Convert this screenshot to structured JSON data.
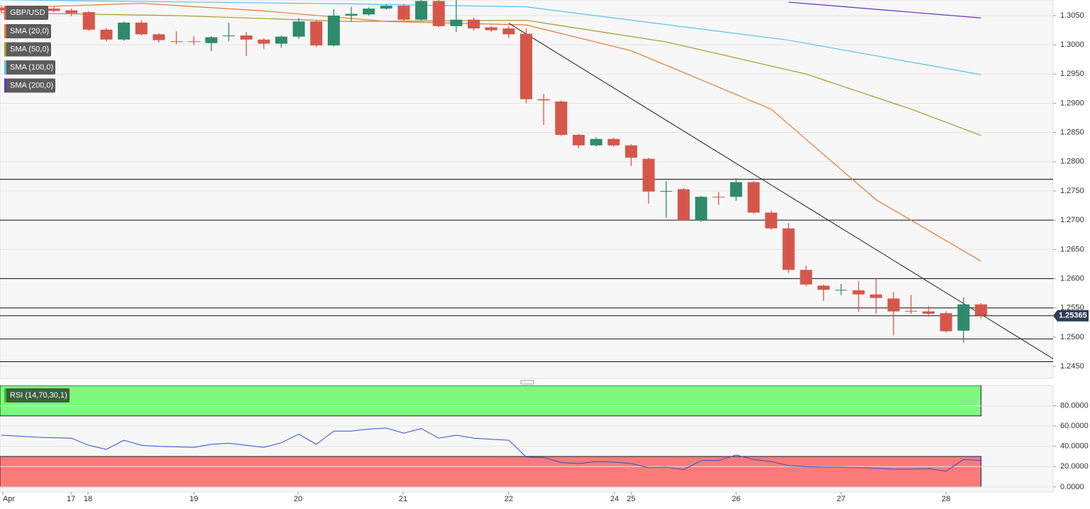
{
  "chart_data": [
    {
      "type": "candlestick",
      "title": "GBP/USD",
      "xlim": [
        -0.081,
        60.12
      ],
      "ylim": [
        1.24294,
        1.30767
      ],
      "yticks": [
        {
          "value": 1.245,
          "label": "1.2450"
        },
        {
          "value": 1.25,
          "label": "1.2500"
        },
        {
          "value": 1.255,
          "label": "1.2550"
        },
        {
          "value": 1.26,
          "label": "1.2600"
        },
        {
          "value": 1.265,
          "label": "1.2650"
        },
        {
          "value": 1.27,
          "label": "1.2700"
        },
        {
          "value": 1.275,
          "label": "1.2750"
        },
        {
          "value": 1.28,
          "label": "1.2800"
        },
        {
          "value": 1.285,
          "label": "1.2850"
        },
        {
          "value": 1.29,
          "label": "1.2900"
        },
        {
          "value": 1.295,
          "label": "1.2950"
        },
        {
          "value": 1.3,
          "label": "1.3000"
        },
        {
          "value": 1.305,
          "label": "1.3050"
        }
      ],
      "grid": true,
      "up_color": "#2f8a6c",
      "down_color": "#d6574a",
      "open": [
        1.3063,
        1.3061,
        1.3058,
        1.3062,
        1.3059,
        1.3056,
        1.3026,
        1.3009,
        1.3038,
        1.3018,
        1.3006,
        1.3006,
        1.3003,
        1.3015,
        1.3016,
        1.3009,
        1.3002,
        1.3014,
        1.304,
        1.2999,
        1.305,
        1.3052,
        1.3062,
        1.3067,
        1.3043,
        1.3075,
        1.3032,
        1.3043,
        1.303,
        1.3028,
        1.3019,
        1.2907,
        1.2903,
        1.2846,
        1.2828,
        1.2839,
        1.2828,
        1.2805,
        1.2749,
        1.2753,
        1.27,
        1.274,
        1.274,
        1.2765,
        1.2713,
        1.2686,
        1.2615,
        1.2588,
        1.258,
        1.258,
        1.2573,
        1.2566,
        1.2545,
        1.2544,
        1.2541,
        1.2511,
        1.2556
      ],
      "high": [
        1.3068,
        1.3065,
        1.3062,
        1.3065,
        1.3062,
        1.3058,
        1.3029,
        1.304,
        1.3042,
        1.302,
        1.3023,
        1.3015,
        1.3015,
        1.3038,
        1.3022,
        1.3011,
        1.3016,
        1.3046,
        1.3042,
        1.3061,
        1.3065,
        1.3064,
        1.3069,
        1.307,
        1.308,
        1.3078,
        1.3077,
        1.3046,
        1.3032,
        1.3032,
        1.3028,
        1.2916,
        1.2905,
        1.2848,
        1.2842,
        1.2841,
        1.283,
        1.2807,
        1.2767,
        1.2755,
        1.2742,
        1.2748,
        1.2772,
        1.2767,
        1.2716,
        1.2695,
        1.2622,
        1.259,
        1.2591,
        1.2596,
        1.26,
        1.2577,
        1.2572,
        1.2553,
        1.2544,
        1.2568,
        1.2558
      ],
      "low": [
        1.3055,
        1.3055,
        1.3056,
        1.3056,
        1.3049,
        1.3024,
        1.3006,
        1.3007,
        1.3016,
        1.3004,
        1.3001,
        1.3,
        1.2989,
        1.3006,
        1.2981,
        1.2993,
        1.2995,
        1.301,
        1.2996,
        1.2997,
        1.304,
        1.305,
        1.306,
        1.3041,
        1.3041,
        1.303,
        1.3022,
        1.3024,
        1.3022,
        1.3012,
        1.29,
        1.2863,
        1.2844,
        1.2823,
        1.2826,
        1.2826,
        1.2793,
        1.2728,
        1.2704,
        1.27,
        1.2697,
        1.2726,
        1.2733,
        1.2711,
        1.2684,
        1.261,
        1.2587,
        1.2562,
        1.2572,
        1.2543,
        1.254,
        1.2503,
        1.254,
        1.2535,
        1.2508,
        1.2491,
        1.2532
      ],
      "close": [
        1.3059,
        1.3058,
        1.306,
        1.3058,
        1.3054,
        1.3026,
        1.3009,
        1.3038,
        1.3018,
        1.3008,
        1.3005,
        1.3005,
        1.3013,
        1.3016,
        1.3009,
        1.3002,
        1.3014,
        1.304,
        1.2999,
        1.305,
        1.3053,
        1.3062,
        1.3067,
        1.3043,
        1.3075,
        1.3032,
        1.3043,
        1.3028,
        1.3025,
        1.3018,
        1.2907,
        1.2905,
        1.2846,
        1.2828,
        1.2839,
        1.2828,
        1.2807,
        1.2749,
        1.275,
        1.27,
        1.274,
        1.2739,
        1.2765,
        1.2713,
        1.2686,
        1.2615,
        1.259,
        1.2581,
        1.2581,
        1.2573,
        1.2567,
        1.2544,
        1.2544,
        1.254,
        1.251,
        1.2556,
        1.2537
      ],
      "series": [
        {
          "name": "SMA (20,0)",
          "color": "#e8782f",
          "x": [
            0,
            8,
            15,
            22,
            30,
            36,
            38,
            44,
            50,
            56
          ],
          "values": [
            1.3063,
            1.3071,
            1.3058,
            1.304,
            1.3034,
            1.299,
            1.2965,
            1.289,
            1.2735,
            1.263
          ]
        },
        {
          "name": "SMA (50,0)",
          "color": "#a89a2a",
          "x": [
            0,
            10,
            20,
            30,
            38,
            46,
            52,
            56
          ],
          "values": [
            1.3055,
            1.305,
            1.304,
            1.3042,
            1.3005,
            1.295,
            1.289,
            1.2845
          ]
        },
        {
          "name": "SMA (100,0)",
          "color": "#5bc0eb",
          "x": [
            0,
            20,
            30,
            45,
            56
          ],
          "values": [
            1.3077,
            1.307,
            1.3065,
            1.3008,
            1.2949
          ]
        },
        {
          "name": "SMA (200,0)",
          "color": "#6a2fc4",
          "x": [
            45,
            56
          ],
          "values": [
            1.3073,
            1.3046
          ]
        }
      ],
      "hlines": [
        1.277,
        1.27,
        1.26,
        1.255,
        1.25365,
        1.2497,
        1.2458
      ],
      "trendline": {
        "x": [
          29,
          60.12
        ],
        "values": [
          1.3037,
          1.2463
        ]
      },
      "last_price": {
        "value": 1.25365,
        "label": "1.25365"
      }
    },
    {
      "type": "line",
      "title": "RSI (14,70,30,1)",
      "color": "#2c4fe0",
      "xlim": [
        -0.081,
        60.12
      ],
      "ylim": [
        -5,
        100
      ],
      "yticks": [
        {
          "value": 0,
          "label": "0.0000"
        },
        {
          "value": 20,
          "label": "20.0000"
        },
        {
          "value": 40,
          "label": "40.0000"
        },
        {
          "value": 60,
          "label": "60.0000"
        },
        {
          "value": 80,
          "label": "80.0000"
        }
      ],
      "xticks": [
        {
          "value": 0.08,
          "label": "Apr"
        },
        {
          "value": 3.98,
          "label": "17"
        },
        {
          "value": 4.95,
          "label": "18"
        },
        {
          "value": 11,
          "label": "19"
        },
        {
          "value": 16.96,
          "label": "20"
        },
        {
          "value": 22.96,
          "label": "21"
        },
        {
          "value": 29,
          "label": "22"
        },
        {
          "value": 35.05,
          "label": "24"
        },
        {
          "value": 36,
          "label": "25"
        },
        {
          "value": 42,
          "label": "26"
        },
        {
          "value": 48,
          "label": "27"
        },
        {
          "value": 54,
          "label": "28"
        }
      ],
      "bands": [
        {
          "from": 70,
          "to": 100,
          "color": "#7dfa7d"
        },
        {
          "from": 0,
          "to": 30,
          "color": "#fb7b7b"
        }
      ],
      "values": [
        51,
        50,
        49,
        48.5,
        48,
        41,
        37,
        46,
        41,
        40,
        39.5,
        39,
        42,
        43,
        41,
        39,
        43.5,
        52,
        42,
        55,
        55,
        57,
        58,
        53,
        57.5,
        48,
        51,
        48,
        47,
        46,
        29.5,
        29,
        24,
        23,
        25,
        24.5,
        23,
        19,
        19.5,
        17,
        26,
        26,
        31.5,
        27,
        25,
        21,
        20,
        19.5,
        19.5,
        19,
        18.5,
        17.5,
        17.5,
        18,
        15.5,
        27,
        26
      ]
    }
  ]
}
